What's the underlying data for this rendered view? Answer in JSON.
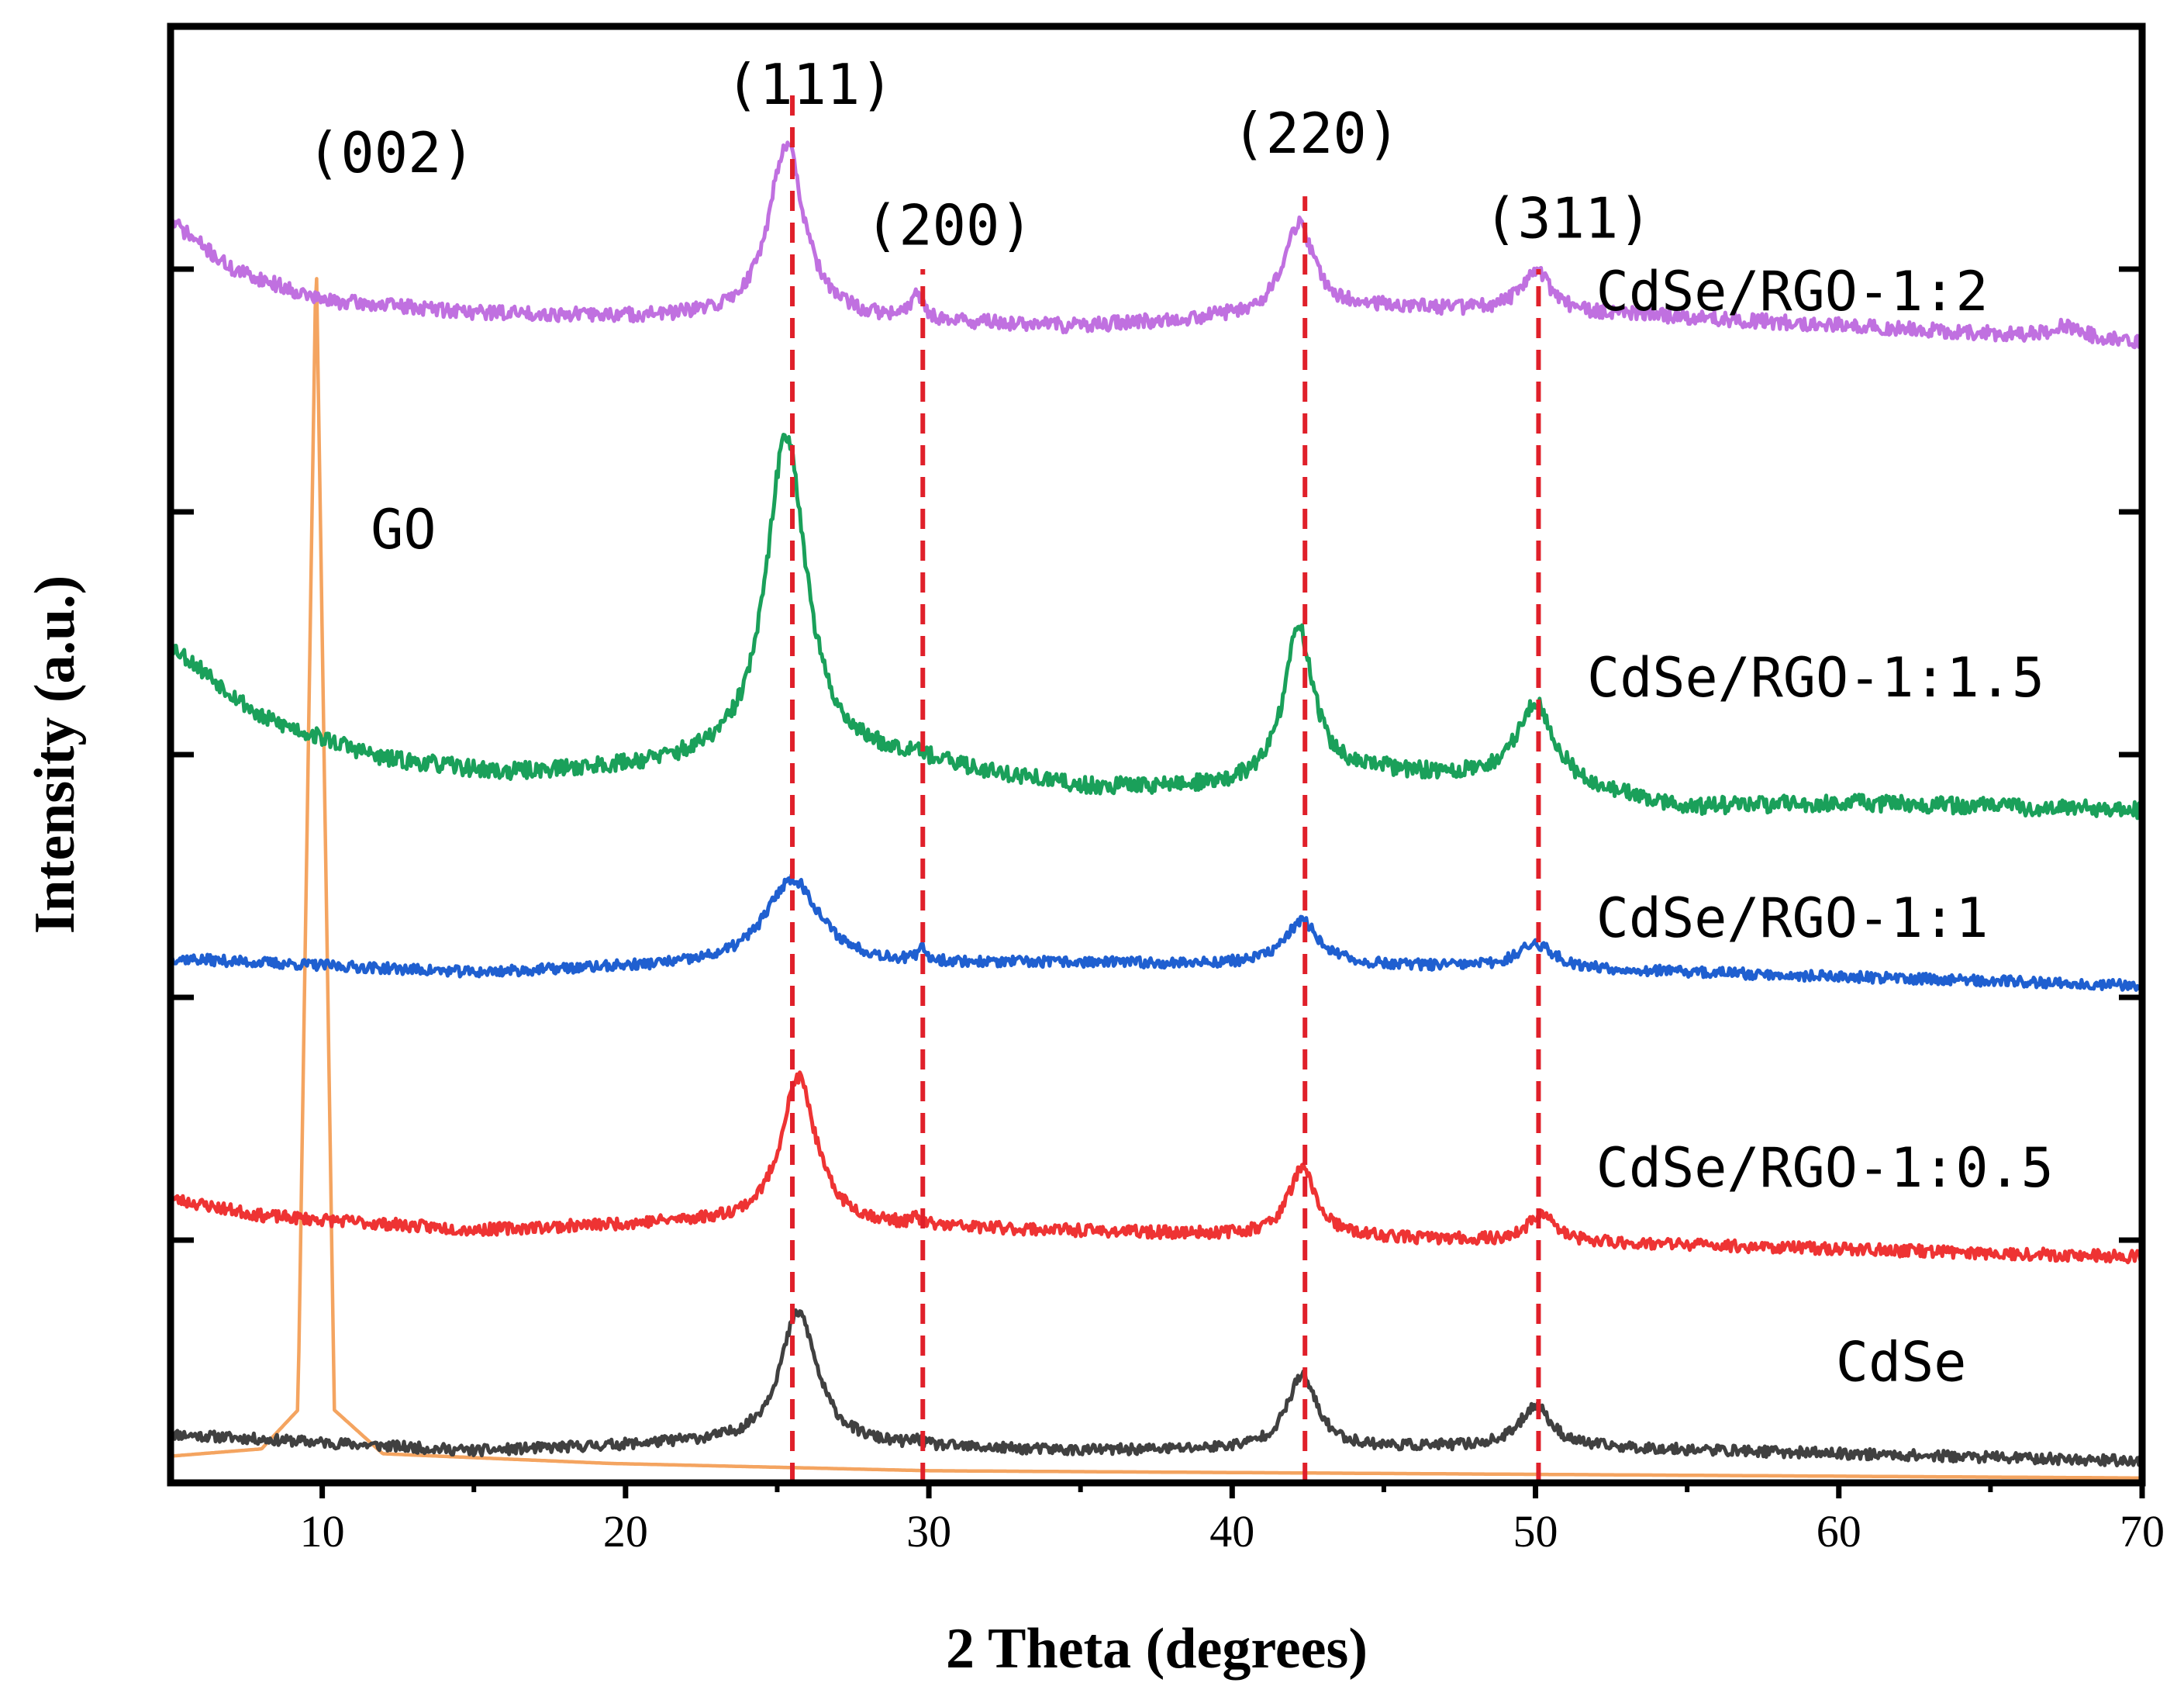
{
  "chart_data": {
    "type": "line",
    "title": "",
    "xlabel": "2 Theta (degrees)",
    "ylabel": "Intensity (a.u.)",
    "xlim": [
      5,
      70
    ],
    "ylim": [
      0,
      6
    ],
    "x_ticks": [
      10,
      20,
      30,
      40,
      50,
      60,
      70
    ],
    "x_minor_ticks": [
      15,
      25,
      35,
      45,
      55,
      65
    ],
    "y_ticks": [
      1,
      2,
      3,
      4,
      5
    ],
    "y_tick_labels_shown": false,
    "grid": false,
    "series": [
      {
        "name": "GO",
        "color": "#F4A460",
        "noise": 0,
        "seed": 1,
        "baseline": [
          [
            5,
            0.11
          ],
          [
            8,
            0.14
          ],
          [
            9.2,
            0.3
          ],
          [
            9.8,
            5.08
          ],
          [
            10.4,
            0.3
          ],
          [
            12,
            0.12
          ],
          [
            19.5,
            0.08
          ],
          [
            30,
            0.05
          ],
          [
            70,
            0.02
          ]
        ],
        "peaks": []
      },
      {
        "name": "CdSe",
        "color": "#404040",
        "noise": 0.022,
        "seed": 11,
        "baseline": [
          [
            5,
            0.2
          ],
          [
            15,
            0.13
          ],
          [
            22,
            0.16
          ],
          [
            35,
            0.13
          ],
          [
            50,
            0.15
          ],
          [
            70,
            0.09
          ]
        ],
        "peaks": [
          [
            25.7,
            0.55,
            0.75
          ],
          [
            42.3,
            0.3,
            0.6
          ],
          [
            50.0,
            0.17,
            0.6
          ],
          [
            29.6,
            0.02,
            0.2
          ]
        ]
      },
      {
        "name": "CdSe/RGO-1:0.5",
        "color": "#EE3333",
        "noise": 0.025,
        "seed": 23,
        "baseline": [
          [
            5,
            1.17
          ],
          [
            8,
            1.1
          ],
          [
            15,
            1.04
          ],
          [
            22,
            1.07
          ],
          [
            30,
            1.05
          ],
          [
            40,
            1.02
          ],
          [
            55,
            0.98
          ],
          [
            70,
            0.93
          ]
        ],
        "peaks": [
          [
            25.7,
            0.61,
            0.7
          ],
          [
            42.3,
            0.28,
            0.55
          ],
          [
            50.2,
            0.12,
            0.5
          ],
          [
            29.6,
            0.03,
            0.15
          ]
        ]
      },
      {
        "name": "CdSe/RGO-1:1",
        "color": "#1F5FD0",
        "noise": 0.022,
        "seed": 37,
        "baseline": [
          [
            5,
            2.16
          ],
          [
            15,
            2.1
          ],
          [
            20,
            2.12
          ],
          [
            35,
            2.14
          ],
          [
            50,
            2.12
          ],
          [
            70,
            2.05
          ]
        ],
        "peaks": [
          [
            25.5,
            0.36,
            1.1
          ],
          [
            42.3,
            0.18,
            0.7
          ],
          [
            50.0,
            0.1,
            0.7
          ],
          [
            29.8,
            0.05,
            0.15
          ]
        ]
      },
      {
        "name": "CdSe/RGO-1:1.5",
        "color": "#1AA05A",
        "noise": 0.035,
        "seed": 53,
        "baseline": [
          [
            5,
            3.45
          ],
          [
            8,
            3.15
          ],
          [
            12,
            2.98
          ],
          [
            16,
            2.92
          ],
          [
            22,
            2.95
          ],
          [
            29,
            2.97
          ],
          [
            35,
            2.86
          ],
          [
            40,
            2.86
          ],
          [
            45,
            2.92
          ],
          [
            50,
            2.88
          ],
          [
            55,
            2.78
          ],
          [
            60,
            2.8
          ],
          [
            70,
            2.77
          ]
        ],
        "peaks": [
          [
            25.3,
            1.36,
            0.8
          ],
          [
            42.2,
            0.63,
            0.6
          ],
          [
            50.0,
            0.33,
            0.75
          ],
          [
            29.6,
            0.04,
            0.2
          ]
        ]
      },
      {
        "name": "CdSe/RGO-1:2",
        "color": "#C070E0",
        "noise": 0.03,
        "seed": 71,
        "baseline": [
          [
            5,
            5.2
          ],
          [
            7,
            5.0
          ],
          [
            10,
            4.87
          ],
          [
            15,
            4.82
          ],
          [
            20,
            4.8
          ],
          [
            30,
            4.78
          ],
          [
            35,
            4.76
          ],
          [
            45,
            4.84
          ],
          [
            55,
            4.8
          ],
          [
            70,
            4.7
          ]
        ],
        "peaks": [
          [
            25.3,
            0.73,
            0.7
          ],
          [
            42.2,
            0.37,
            0.6
          ],
          [
            50.0,
            0.17,
            0.6
          ],
          [
            29.6,
            0.12,
            0.2
          ],
          [
            67.5,
            0.05,
            0.6
          ]
        ]
      }
    ],
    "series_labels": [
      {
        "text": "GO",
        "x": 11.6,
        "y": 3.85
      },
      {
        "text": "CdSe",
        "x": 59.9,
        "y": 0.42
      },
      {
        "text": "CdSe/RGO-1:0.5",
        "x": 52.0,
        "y": 1.22
      },
      {
        "text": "CdSe/RGO-1:1",
        "x": 52.0,
        "y": 2.25
      },
      {
        "text": "CdSe/RGO-1:1.5",
        "x": 51.7,
        "y": 3.24
      },
      {
        "text": "CdSe/RGO-1:2",
        "x": 52.0,
        "y": 4.83
      }
    ],
    "reference_lines": [
      {
        "x": 25.5,
        "y_top": 5.75,
        "color": "#E0202A"
      },
      {
        "x": 29.8,
        "y_top": 5.0,
        "color": "#E0202A"
      },
      {
        "x": 42.4,
        "y_top": 5.3,
        "color": "#E0202A"
      },
      {
        "x": 50.1,
        "y_top": 5.0,
        "color": "#E0202A"
      }
    ],
    "peak_labels": [
      {
        "text": "(002)",
        "x": 9.5,
        "y": 5.4
      },
      {
        "text": "(111)",
        "x": 23.3,
        "y": 5.68
      },
      {
        "text": "(200)",
        "x": 27.9,
        "y": 5.1
      },
      {
        "text": "(220)",
        "x": 40.0,
        "y": 5.48
      },
      {
        "text": "(311)",
        "x": 48.3,
        "y": 5.13
      }
    ]
  }
}
